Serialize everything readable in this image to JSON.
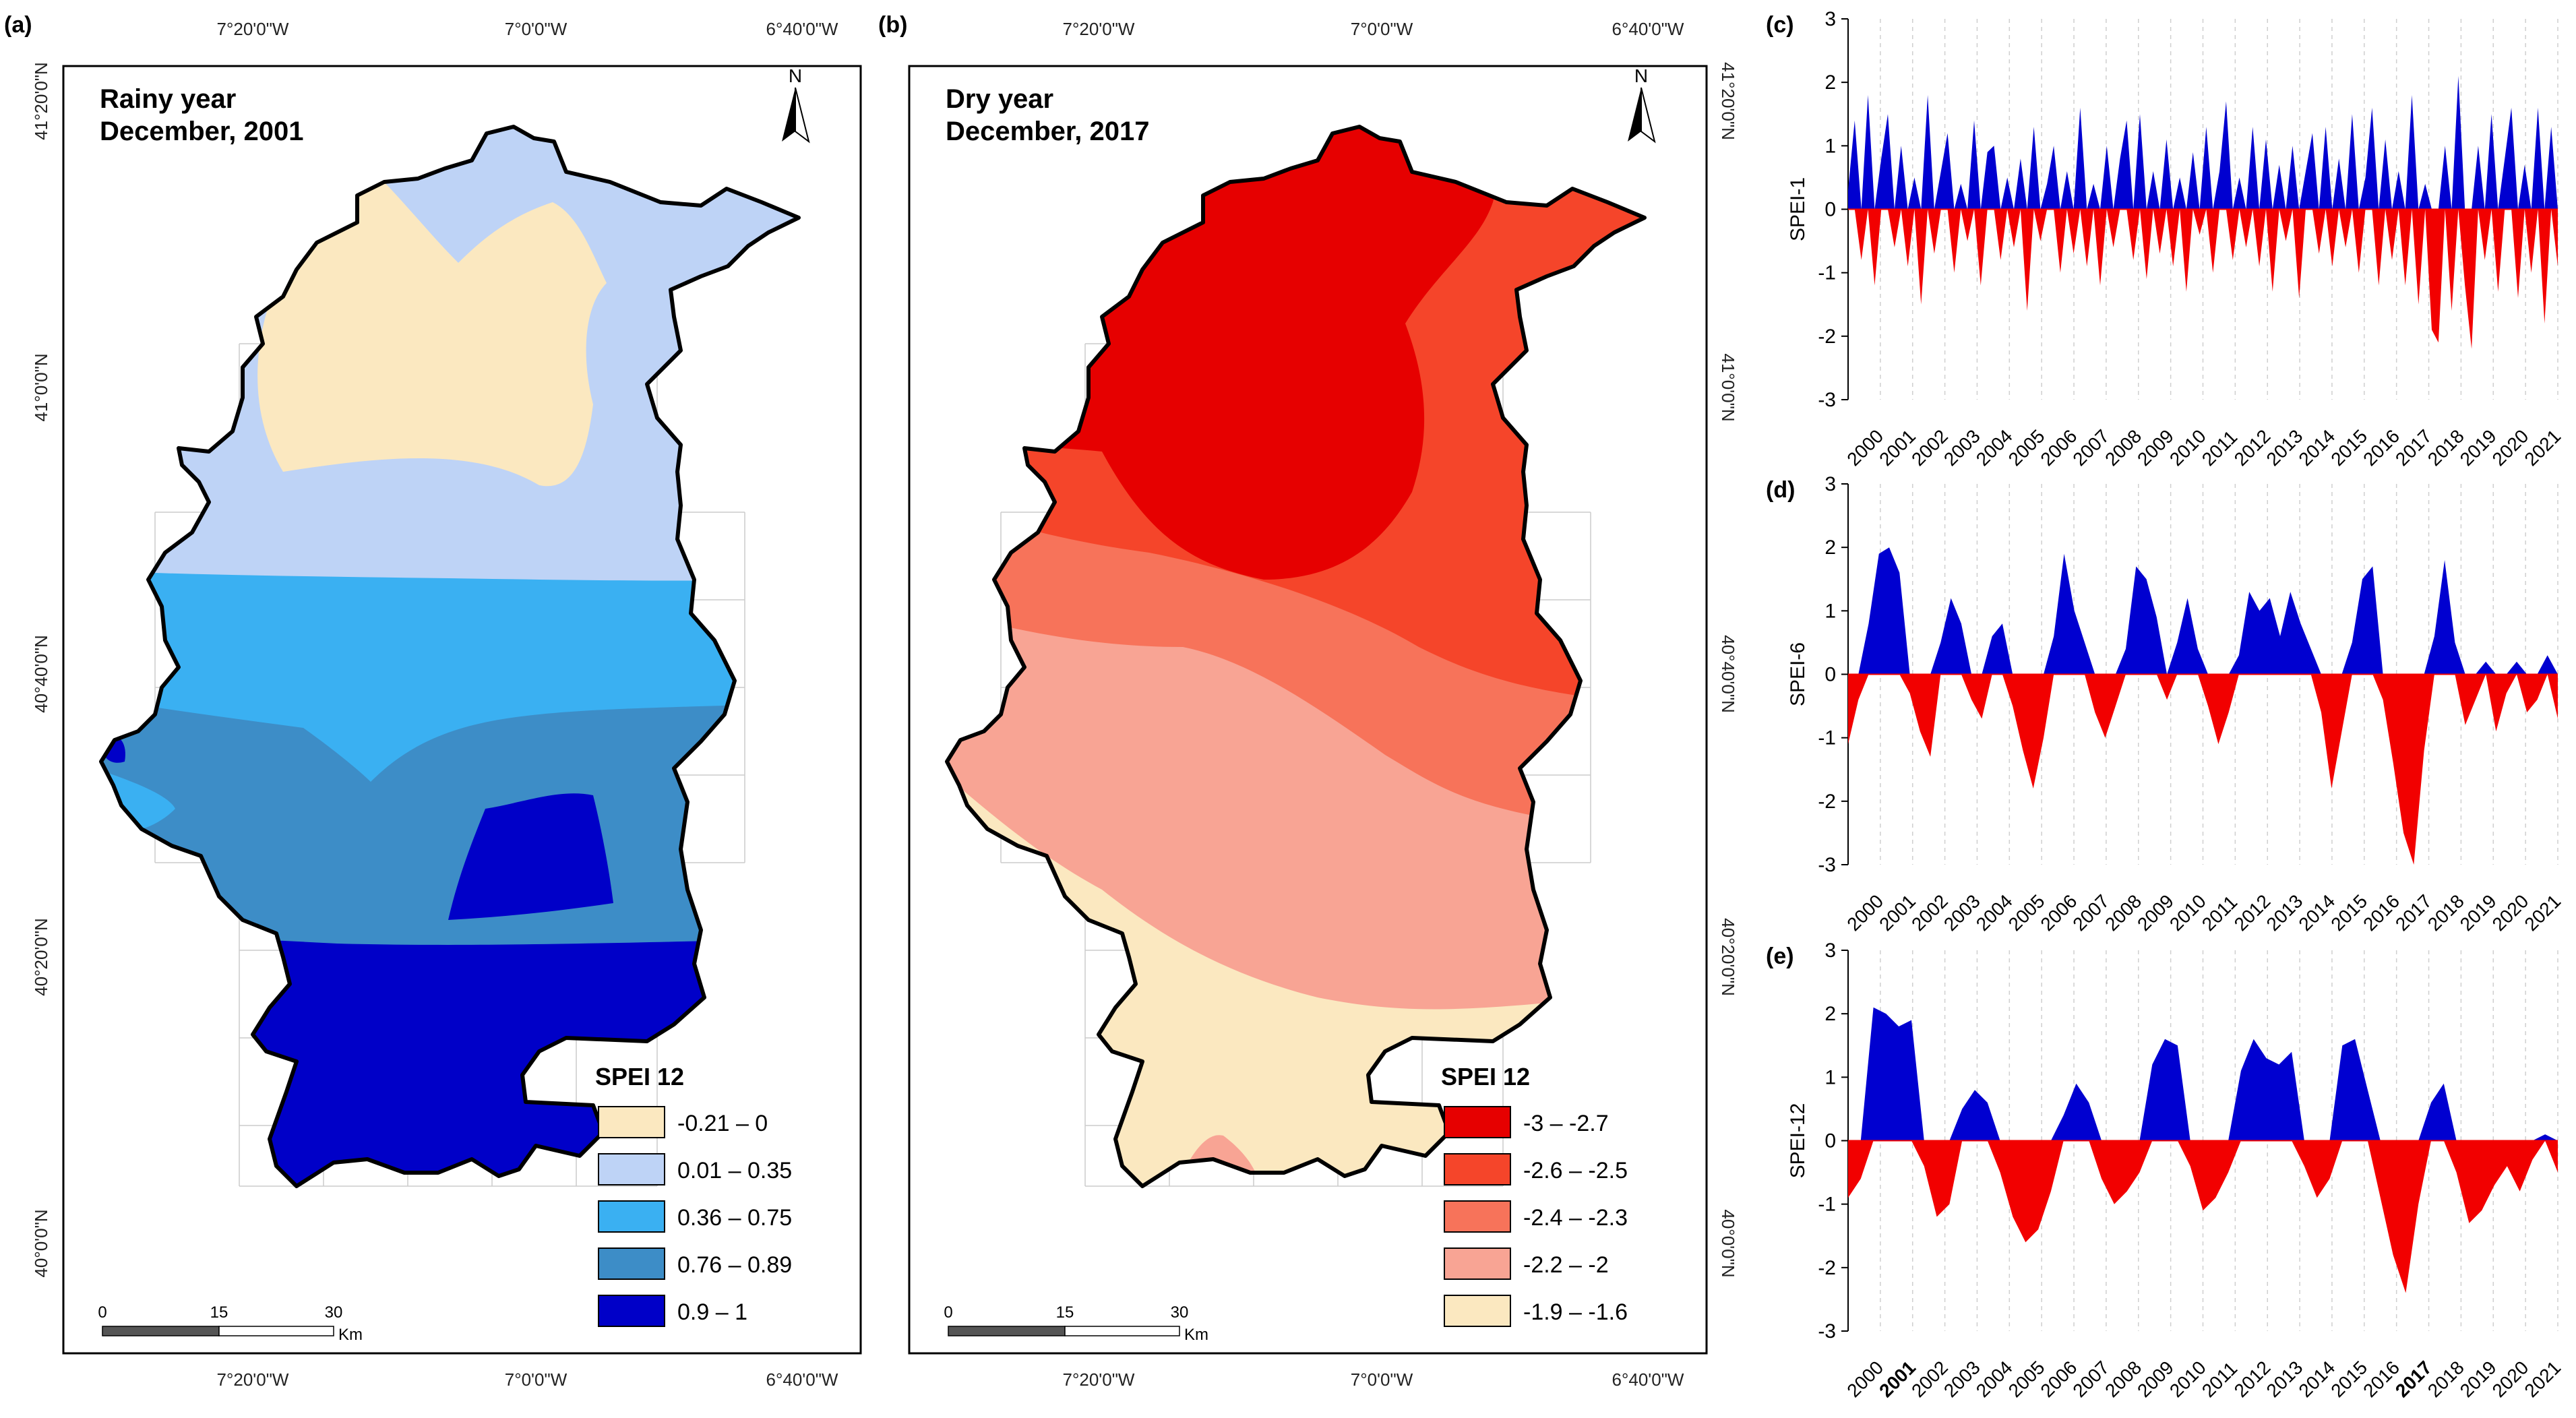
{
  "panel_a": {
    "label": "(a)",
    "title_line1": "Rainy year",
    "title_line2": "December, 2001",
    "top_coords": [
      "7°20'0\"W",
      "7°0'0\"W",
      "6°40'0\"W"
    ],
    "bottom_coords": [
      "7°20'0\"W",
      "7°0'0\"W",
      "6°40'0\"W"
    ],
    "left_coords": [
      "41°20'0\"N",
      "41°0'0\"N",
      "40°40'0\"N",
      "40°20'0\"N",
      "40°0'0\"N"
    ],
    "north": "N",
    "legend": {
      "title": "SPEI 12",
      "items": [
        {
          "label": "-0.21 – 0",
          "color": "#fbe8c0"
        },
        {
          "label": "0.01 – 0.35",
          "color": "#bed3f6"
        },
        {
          "label": "0.36 – 0.75",
          "color": "#3ab0f2"
        },
        {
          "label": "0.76 – 0.89",
          "color": "#3d8dc7"
        },
        {
          "label": "0.9 – 1",
          "color": "#0000c8"
        }
      ]
    },
    "scale": {
      "t0": "0",
      "t1": "15",
      "t2": "30",
      "unit": "Km"
    }
  },
  "panel_b": {
    "label": "(b)",
    "title_line1": "Dry year",
    "title_line2": "December, 2017",
    "top_coords": [
      "7°20'0\"W",
      "7°0'0\"W",
      "6°40'0\"W"
    ],
    "bottom_coords": [
      "7°20'0\"W",
      "7°0'0\"W",
      "6°40'0\"W"
    ],
    "right_coords": [
      "41°20'0\"N",
      "41°0'0\"N",
      "40°40'0\"N",
      "40°20'0\"N",
      "40°0'0\"N"
    ],
    "north": "N",
    "legend": {
      "title": "SPEI 12",
      "items": [
        {
          "label": "-3 – -2.7",
          "color": "#e60000"
        },
        {
          "label": "-2.6 – -2.5",
          "color": "#f5452a"
        },
        {
          "label": "-2.4 – -2.3",
          "color": "#f7735a"
        },
        {
          "label": "-2.2 – -2",
          "color": "#f8a494"
        },
        {
          "label": "-1.9 – -1.6",
          "color": "#fbe8c0"
        }
      ]
    },
    "scale": {
      "t0": "0",
      "t1": "15",
      "t2": "30",
      "unit": "Km"
    }
  },
  "colors": {
    "positive": "#0000d0",
    "negative": "#f20000"
  },
  "chart_data": [
    {
      "type": "area",
      "label": "(c)",
      "ylabel": "SPEI-1",
      "ylim": [
        -3,
        3
      ],
      "yticks": [
        "3",
        "2",
        "1",
        "0",
        "-1",
        "-2",
        "-3"
      ],
      "years": [
        "2000",
        "2001",
        "2002",
        "2003",
        "2004",
        "2005",
        "2006",
        "2007",
        "2008",
        "2009",
        "2010",
        "2011",
        "2012",
        "2013",
        "2014",
        "2015",
        "2016",
        "2017",
        "2018",
        "2019",
        "2020",
        "2021"
      ],
      "bold_years": [],
      "values": [
        0.3,
        1.4,
        -0.8,
        1.8,
        -1.2,
        0.8,
        1.5,
        -0.6,
        1.0,
        -0.9,
        0.5,
        -1.5,
        1.8,
        -0.7,
        0.6,
        1.2,
        -1.0,
        0.4,
        -0.5,
        1.4,
        -1.2,
        0.9,
        1.0,
        -0.8,
        0.5,
        -0.6,
        0.8,
        -1.6,
        1.3,
        -0.5,
        0.4,
        1.0,
        -1.0,
        0.6,
        -0.7,
        1.6,
        -0.9,
        0.4,
        -1.2,
        1.0,
        -0.6,
        0.8,
        1.4,
        -0.8,
        1.5,
        -1.1,
        0.6,
        -0.7,
        1.1,
        -0.9,
        0.5,
        -1.3,
        0.9,
        -0.4,
        1.3,
        -1.0,
        0.6,
        1.7,
        -0.8,
        0.5,
        -0.6,
        1.3,
        -0.9,
        1.1,
        -1.3,
        0.7,
        -0.5,
        1.0,
        -1.4,
        0.6,
        1.2,
        -0.7,
        1.3,
        -0.9,
        0.8,
        -0.6,
        1.5,
        -1.0,
        0.5,
        1.6,
        -1.2,
        1.1,
        -0.8,
        0.6,
        -1.2,
        1.8,
        -1.5,
        0.4,
        -1.9,
        -2.1,
        1.0,
        -1.6,
        2.1,
        -1.2,
        -2.2,
        1.0,
        -0.8,
        1.5,
        -1.3,
        0.8,
        1.6,
        -1.4,
        0.7,
        -1.0,
        1.6,
        -1.8,
        1.3,
        -0.9
      ]
    },
    {
      "type": "area",
      "label": "(d)",
      "ylabel": "SPEI-6",
      "ylim": [
        -3,
        3
      ],
      "yticks": [
        "3",
        "2",
        "1",
        "0",
        "-1",
        "-2",
        "-3"
      ],
      "years": [
        "2000",
        "2001",
        "2002",
        "2003",
        "2004",
        "2005",
        "2006",
        "2007",
        "2008",
        "2009",
        "2010",
        "2011",
        "2012",
        "2013",
        "2014",
        "2015",
        "2016",
        "2017",
        "2018",
        "2019",
        "2020",
        "2021"
      ],
      "bold_years": [],
      "values": [
        -1.1,
        -0.4,
        0.8,
        1.9,
        2.0,
        1.6,
        -0.3,
        -0.9,
        -1.3,
        0.5,
        1.2,
        0.8,
        -0.4,
        -0.7,
        0.6,
        0.8,
        -0.5,
        -1.2,
        -1.8,
        -1.0,
        0.6,
        1.9,
        1.0,
        0.5,
        -0.6,
        -1.0,
        -0.5,
        0.4,
        1.7,
        1.5,
        0.9,
        -0.4,
        0.5,
        1.2,
        0.4,
        -0.5,
        -1.1,
        -0.6,
        0.3,
        1.3,
        1.0,
        1.2,
        0.6,
        1.3,
        0.8,
        0.4,
        -0.6,
        -1.8,
        -0.9,
        0.5,
        1.5,
        1.7,
        -0.4,
        -1.4,
        -2.5,
        -3.0,
        -1.2,
        0.6,
        1.8,
        0.5,
        -0.8,
        -0.4,
        0.2,
        -0.9,
        -0.3,
        0.2,
        -0.6,
        -0.4,
        0.3,
        -0.7
      ]
    },
    {
      "type": "area",
      "label": "(e)",
      "ylabel": "SPEI-12",
      "ylim": [
        -3,
        3
      ],
      "yticks": [
        "3",
        "2",
        "1",
        "0",
        "-1",
        "-2",
        "-3"
      ],
      "years": [
        "2000",
        "2001",
        "2002",
        "2003",
        "2004",
        "2005",
        "2006",
        "2007",
        "2008",
        "2009",
        "2010",
        "2011",
        "2012",
        "2013",
        "2014",
        "2015",
        "2016",
        "2017",
        "2018",
        "2019",
        "2020",
        "2021"
      ],
      "bold_years": [
        "2001",
        "2017"
      ],
      "values": [
        -0.9,
        -0.6,
        2.1,
        2.0,
        1.8,
        1.9,
        -0.4,
        -1.2,
        -1.0,
        0.5,
        0.8,
        0.6,
        -0.5,
        -1.2,
        -1.6,
        -1.4,
        -0.8,
        0.4,
        0.9,
        0.6,
        -0.6,
        -1.0,
        -0.8,
        -0.5,
        1.2,
        1.6,
        1.5,
        -0.4,
        -1.1,
        -0.9,
        -0.5,
        1.1,
        1.6,
        1.3,
        1.2,
        1.4,
        -0.4,
        -0.9,
        -0.6,
        1.5,
        1.6,
        0.8,
        -0.9,
        -1.8,
        -2.4,
        -1.0,
        0.6,
        0.9,
        -0.5,
        -1.3,
        -1.1,
        -0.7,
        -0.4,
        -0.8,
        -0.3,
        0.1,
        -0.5
      ]
    }
  ]
}
